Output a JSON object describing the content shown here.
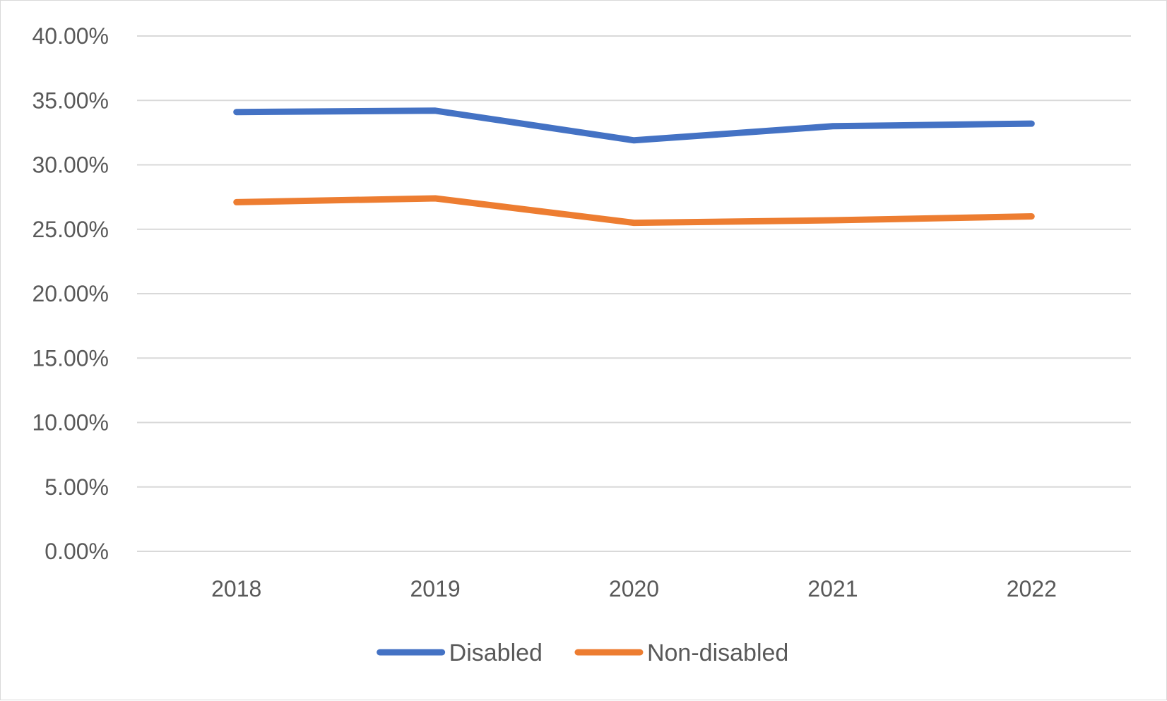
{
  "chart_data": {
    "type": "line",
    "title": "",
    "xlabel": "",
    "ylabel": "",
    "categories": [
      "2018",
      "2019",
      "2020",
      "2021",
      "2022"
    ],
    "ylim": [
      0,
      40
    ],
    "yticks": [
      0,
      5,
      10,
      15,
      20,
      25,
      30,
      35,
      40
    ],
    "ytick_labels": [
      "0.00%",
      "5.00%",
      "10.00%",
      "15.00%",
      "20.00%",
      "25.00%",
      "30.00%",
      "35.00%",
      "40.00%"
    ],
    "grid": true,
    "legend_position": "bottom",
    "series": [
      {
        "name": "Disabled",
        "color": "#4472C4",
        "values": [
          34.1,
          34.2,
          31.9,
          33.0,
          33.2
        ]
      },
      {
        "name": "Non-disabled",
        "color": "#ED7D31",
        "values": [
          27.1,
          27.4,
          25.5,
          25.7,
          26.0
        ]
      }
    ]
  }
}
